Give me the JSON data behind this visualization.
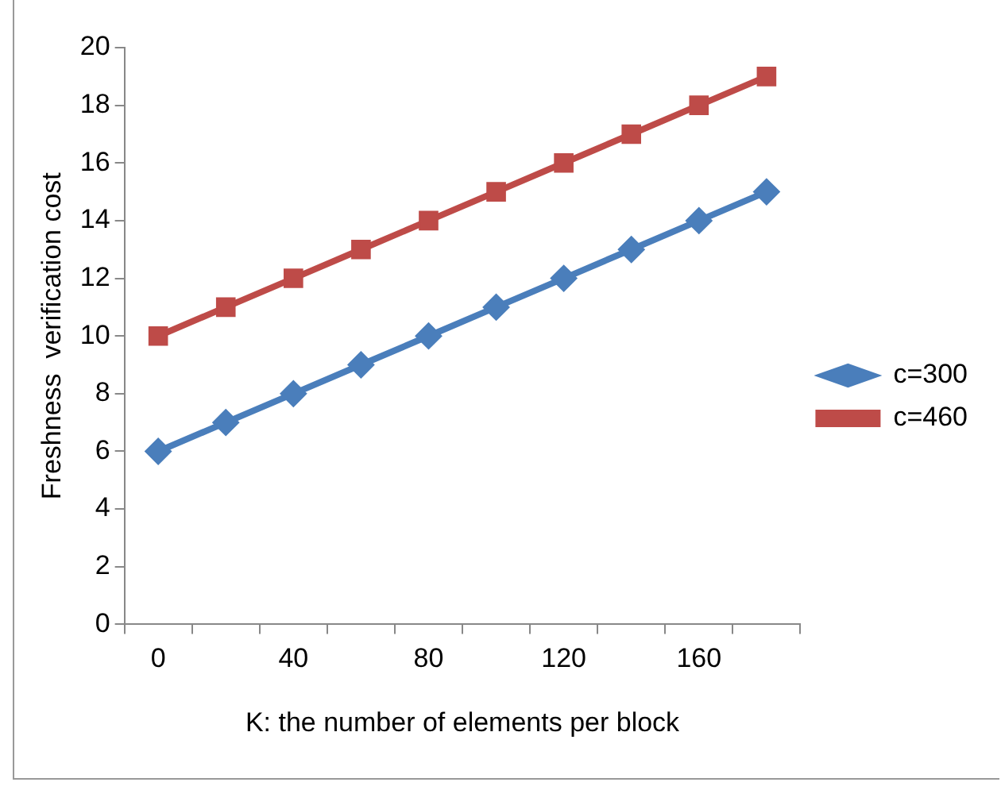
{
  "chart_data": {
    "type": "line",
    "xlabel": "K: the number of elements per block",
    "ylabel": "Freshness  verification cost",
    "categories": [
      "0",
      null,
      "40",
      null,
      "80",
      null,
      "120",
      null,
      "160",
      null
    ],
    "series": [
      {
        "name": "c=300",
        "color": "#4a7ebb",
        "marker": "diamond",
        "values": [
          6,
          7,
          8,
          9,
          10,
          11,
          12,
          13,
          14,
          15
        ]
      },
      {
        "name": "c=460",
        "color": "#be4b48",
        "marker": "square",
        "values": [
          10,
          11,
          12,
          13,
          14,
          15,
          16,
          17,
          18,
          19
        ]
      }
    ],
    "ylim": [
      0,
      20
    ],
    "yticks": [
      0,
      2,
      4,
      6,
      8,
      10,
      12,
      14,
      16,
      18,
      20
    ],
    "grid": false,
    "legend": "right",
    "line_style": "solid"
  }
}
